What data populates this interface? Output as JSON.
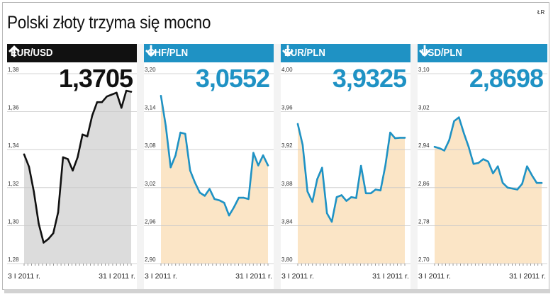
{
  "title": "Polski złoty trzyma się mocno",
  "credit": "ŁR",
  "colors": {
    "dark": "#111111",
    "blue": "#1f92c4",
    "gray_fill": "#dcdcdc",
    "peach_fill": "#fbe5c6"
  },
  "chart_data": [
    {
      "type": "line",
      "name": "EUR/USD",
      "direction": "up",
      "direction_icon": "arrow-up-icon",
      "current_value": "1,3705",
      "ylim": [
        1.28,
        1.38
      ],
      "yticks": [
        "1,28",
        "1,30",
        "1,32",
        "1,34",
        "1,36",
        "1,38"
      ],
      "xtick_labels": [
        "3 I 2011 r.",
        "31 I 2011 r."
      ],
      "x": [
        3,
        4,
        5,
        6,
        7,
        8,
        9,
        10,
        11,
        12,
        13,
        14,
        15,
        16,
        17,
        18,
        19,
        20,
        21,
        22,
        23,
        24,
        25
      ],
      "y": [
        1.3375,
        1.331,
        1.318,
        1.301,
        1.291,
        1.293,
        1.296,
        1.307,
        1.336,
        1.335,
        1.329,
        1.336,
        1.348,
        1.347,
        1.358,
        1.365,
        1.365,
        1.368,
        1.369,
        1.37,
        1.362,
        1.371,
        1.3705
      ]
    },
    {
      "type": "line",
      "name": "CHF/PLN",
      "direction": "down",
      "direction_icon": "arrow-down-icon",
      "current_value": "3,0552",
      "ylim": [
        2.9,
        3.2
      ],
      "yticks": [
        "2,90",
        "2,96",
        "3,02",
        "3,08",
        "3,14",
        "3,20"
      ],
      "xtick_labels": [
        "3 I 2011 r.",
        "31 I 2011 r."
      ],
      "x": [
        3,
        4,
        5,
        6,
        7,
        8,
        9,
        10,
        11,
        12,
        13,
        14,
        15,
        16,
        17,
        18,
        19,
        20,
        21,
        22,
        23,
        24,
        25
      ],
      "y": [
        3.165,
        3.117,
        3.052,
        3.071,
        3.107,
        3.105,
        3.047,
        3.028,
        3.012,
        3.007,
        3.018,
        3.002,
        3.0,
        2.996,
        2.976,
        2.989,
        3.004,
        3.004,
        3.002,
        3.075,
        3.055,
        3.071,
        3.0552
      ]
    },
    {
      "type": "line",
      "name": "EUR/PLN",
      "direction": "down",
      "direction_icon": "arrow-down-icon",
      "current_value": "3,9325",
      "ylim": [
        3.8,
        4.0
      ],
      "yticks": [
        "3,80",
        "3,84",
        "3,88",
        "3,92",
        "3,96",
        "4,00"
      ],
      "xtick_labels": [
        "3 I 2011 r.",
        "31 I 2011 r."
      ],
      "x": [
        3,
        4,
        5,
        6,
        7,
        8,
        9,
        10,
        11,
        12,
        13,
        14,
        15,
        16,
        17,
        18,
        19,
        20,
        21,
        22,
        23,
        24,
        25
      ],
      "y": [
        3.947,
        3.925,
        3.876,
        3.865,
        3.889,
        3.901,
        3.853,
        3.844,
        3.87,
        3.872,
        3.866,
        3.87,
        3.869,
        3.903,
        3.874,
        3.874,
        3.878,
        3.877,
        3.903,
        3.938,
        3.932,
        3.9325,
        3.9325
      ]
    },
    {
      "type": "line",
      "name": "USD/PLN",
      "direction": "down",
      "direction_icon": "arrow-down-icon",
      "current_value": "2,8698",
      "ylim": [
        2.7,
        3.1
      ],
      "yticks": [
        "2,70",
        "2,78",
        "2,86",
        "2,94",
        "3,02",
        "3,10"
      ],
      "xtick_labels": [
        "3 I 2011 r.",
        "31 I 2011 r."
      ],
      "x": [
        3,
        4,
        5,
        6,
        7,
        8,
        9,
        10,
        11,
        12,
        13,
        14,
        15,
        16,
        17,
        18,
        19,
        20,
        21,
        22,
        23,
        24,
        25
      ],
      "y": [
        2.946,
        2.943,
        2.938,
        2.96,
        3.0,
        3.008,
        2.975,
        2.946,
        2.91,
        2.912,
        2.92,
        2.915,
        2.89,
        2.905,
        2.87,
        2.86,
        2.858,
        2.856,
        2.868,
        2.905,
        2.886,
        2.8698,
        2.8698
      ]
    }
  ]
}
